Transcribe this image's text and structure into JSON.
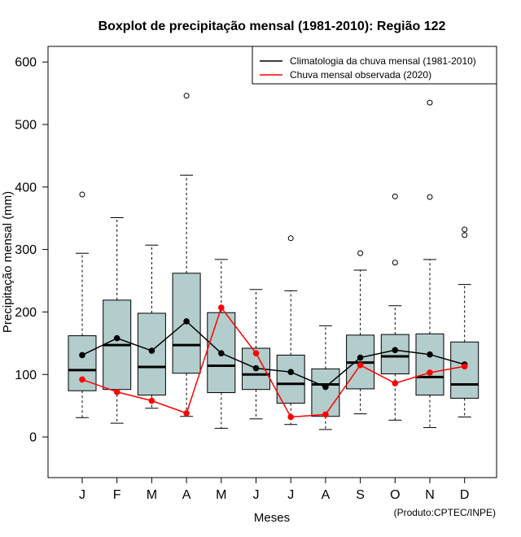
{
  "chart_data": {
    "type": "boxplot",
    "title": "Boxplot de precipitação mensal (1981-2010): Região 122",
    "xlabel": "Meses",
    "ylabel": "Precipitação mensal (mm)",
    "ylim": [
      -65,
      625
    ],
    "yticks": [
      0,
      100,
      200,
      300,
      400,
      500,
      600
    ],
    "categories": [
      "J",
      "F",
      "M",
      "A",
      "M",
      "J",
      "J",
      "A",
      "S",
      "O",
      "N",
      "D"
    ],
    "boxes": [
      {
        "whisker_low": 31,
        "q1": 74,
        "median": 107,
        "q3": 162,
        "whisker_high": 294,
        "outliers": [
          388
        ]
      },
      {
        "whisker_low": 22,
        "q1": 76,
        "median": 147,
        "q3": 219,
        "whisker_high": 351,
        "outliers": []
      },
      {
        "whisker_low": 46,
        "q1": 67,
        "median": 112,
        "q3": 198,
        "whisker_high": 307,
        "outliers": []
      },
      {
        "whisker_low": 33,
        "q1": 102,
        "median": 147,
        "q3": 262,
        "whisker_high": 419,
        "outliers": [
          546
        ]
      },
      {
        "whisker_low": 14,
        "q1": 71,
        "median": 114,
        "q3": 199,
        "whisker_high": 284,
        "outliers": []
      },
      {
        "whisker_low": 29,
        "q1": 76,
        "median": 100,
        "q3": 142,
        "whisker_high": 236,
        "outliers": []
      },
      {
        "whisker_low": 20,
        "q1": 54,
        "median": 85,
        "q3": 131,
        "whisker_high": 234,
        "outliers": [
          318
        ]
      },
      {
        "whisker_low": 12,
        "q1": 33,
        "median": 84,
        "q3": 109,
        "whisker_high": 178,
        "outliers": []
      },
      {
        "whisker_low": 37,
        "q1": 77,
        "median": 119,
        "q3": 163,
        "whisker_high": 267,
        "outliers": [
          294
        ]
      },
      {
        "whisker_low": 27,
        "q1": 101,
        "median": 129,
        "q3": 164,
        "whisker_high": 210,
        "outliers": [
          279,
          385
        ]
      },
      {
        "whisker_low": 15,
        "q1": 67,
        "median": 96,
        "q3": 165,
        "whisker_high": 284,
        "outliers": [
          384,
          535
        ]
      },
      {
        "whisker_low": 32,
        "q1": 62,
        "median": 84,
        "q3": 152,
        "whisker_high": 244,
        "outliers": [
          323,
          332
        ]
      }
    ],
    "series": [
      {
        "name": "Climatologia da chuva mensal (1981-2010)",
        "color": "#000000",
        "values": [
          131,
          158,
          138,
          185,
          134,
          110,
          104,
          80,
          127,
          139,
          132,
          116
        ]
      },
      {
        "name": "Chuva mensal observada (2020)",
        "color": "#ff0000",
        "values": [
          92,
          72,
          58,
          38,
          207,
          134,
          32,
          36,
          115,
          86,
          103,
          113
        ]
      }
    ],
    "legend_position": "top-right",
    "box_fill": "#b3cccc",
    "footer": "(Produto:CPTEC/INPE)"
  }
}
